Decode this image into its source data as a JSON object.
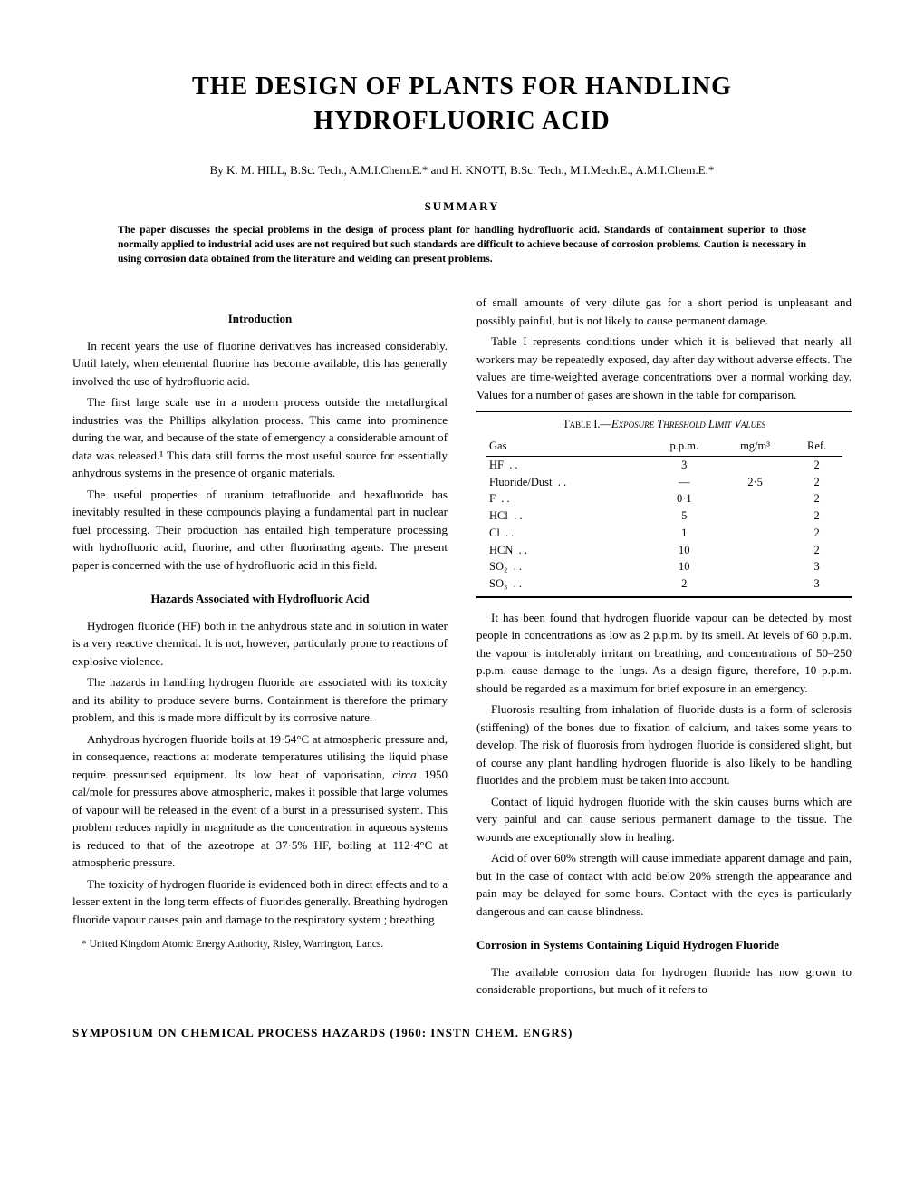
{
  "title_line1": "THE DESIGN OF PLANTS FOR HANDLING",
  "title_line2": "HYDROFLUORIC ACID",
  "byline": "By K. M. HILL, B.Sc. Tech., A.M.I.Chem.E.* and H. KNOTT, B.Sc. Tech., M.I.Mech.E., A.M.I.Chem.E.*",
  "summary_heading": "SUMMARY",
  "summary_text": "The paper discusses the special problems in the design of process plant for handling hydrofluoric acid. Standards of containment superior to those normally applied to industrial acid uses are not required but such standards are difficult to achieve because of corrosion problems. Caution is necessary in using corrosion data obtained from the literature and welding can present problems.",
  "left": {
    "intro_head": "Introduction",
    "p1": "In recent years the use of fluorine derivatives has increased considerably. Until lately, when elemental fluorine has become available, this has generally involved the use of hydrofluoric acid.",
    "p2": "The first large scale use in a modern process outside the metallurgical industries was the Phillips alkylation process. This came into prominence during the war, and because of the state of emergency a considerable amount of data was released.¹ This data still forms the most useful source for essentially anhydrous systems in the presence of organic materials.",
    "p3": "The useful properties of uranium tetrafluoride and hexafluoride has inevitably resulted in these compounds playing a fundamental part in nuclear fuel processing. Their production has entailed high temperature processing with hydrofluoric acid, fluorine, and other fluorinating agents. The present paper is concerned with the use of hydrofluoric acid in this field.",
    "hazards_head": "Hazards Associated with Hydrofluoric Acid",
    "p4": "Hydrogen fluoride (HF) both in the anhydrous state and in solution in water is a very reactive chemical. It is not, however, particularly prone to reactions of explosive violence.",
    "p5": "The hazards in handling hydrogen fluoride are associated with its toxicity and its ability to produce severe burns. Containment is therefore the primary problem, and this is made more difficult by its corrosive nature.",
    "p6a": "Anhydrous hydrogen fluoride boils at 19·54°C at atmospheric pressure and, in consequence, reactions at moderate temperatures utilising the liquid phase require pressurised equipment. Its low heat of vaporisation, ",
    "p6b": "circa",
    "p6c": " 1950 cal/mole for pressures above atmospheric, makes it possible that large volumes of vapour will be released in the event of a burst in a pressurised system. This problem reduces rapidly in magnitude as the concentration in aqueous systems is reduced to that of the azeotrope at 37·5% HF, boiling at 112·4°C at atmospheric pressure.",
    "p7": "The toxicity of hydrogen fluoride is evidenced both in direct effects and to a lesser extent in the long term effects of fluorides generally. Breathing hydrogen fluoride vapour causes pain and damage to the respiratory system ; breathing",
    "footnote": "* United Kingdom Atomic Energy Authority, Risley, Warrington, Lancs."
  },
  "right": {
    "p1": "of small amounts of very dilute gas for a short period is unpleasant and possibly painful, but is not likely to cause permanent damage.",
    "p2": "Table I represents conditions under which it is believed that nearly all workers may be repeatedly exposed, day after day without adverse effects. The values are time-weighted average concentrations over a normal working day. Values for a number of gases are shown in the table for comparison.",
    "table": {
      "title_a": "Table I.—",
      "title_b": "Exposure Threshold Limit Values",
      "cols": [
        "Gas",
        "p.p.m.",
        "mg/m³",
        "Ref."
      ],
      "rows": [
        {
          "gas": "HF",
          "ppm": "3",
          "mg": "",
          "ref": "2"
        },
        {
          "gas": "Fluoride/Dust",
          "ppm": "—",
          "mg": "2·5",
          "ref": "2"
        },
        {
          "gas": "F",
          "ppm": "0·1",
          "mg": "",
          "ref": "2"
        },
        {
          "gas": "HCl",
          "ppm": "5",
          "mg": "",
          "ref": "2"
        },
        {
          "gas": "Cl",
          "ppm": "1",
          "mg": "",
          "ref": "2"
        },
        {
          "gas": "HCN",
          "ppm": "10",
          "mg": "",
          "ref": "2"
        },
        {
          "gas": "SO₂",
          "ppm": "10",
          "mg": "",
          "ref": "3"
        },
        {
          "gas": "SO₃",
          "ppm": "2",
          "mg": "",
          "ref": "3"
        }
      ]
    },
    "p3": "It has been found that hydrogen fluoride vapour can be detected by most people in concentrations as low as 2 p.p.m. by its smell. At levels of 60 p.p.m. the vapour is intolerably irritant on breathing, and concentrations of 50–250 p.p.m. cause damage to the lungs. As a design figure, therefore, 10 p.p.m. should be regarded as a maximum for brief exposure in an emergency.",
    "p4": "Fluorosis resulting from inhalation of fluoride dusts is a form of sclerosis (stiffening) of the bones due to fixation of calcium, and takes some years to develop. The risk of fluorosis from hydrogen fluoride is considered slight, but of course any plant handling hydrogen fluoride is also likely to be handling fluorides and the problem must be taken into account.",
    "p5": "Contact of liquid hydrogen fluoride with the skin causes burns which are very painful and can cause serious permanent damage to the tissue. The wounds are exceptionally slow in healing.",
    "p6": "Acid of over 60% strength will cause immediate apparent damage and pain, but in the case of contact with acid below 20% strength the appearance and pain may be delayed for some hours. Contact with the eyes is particularly dangerous and can cause blindness.",
    "corr_head": "Corrosion in Systems Containing Liquid Hydrogen Fluoride",
    "p7": "The available corrosion data for hydrogen fluoride has now grown to considerable proportions, but much of it refers to"
  },
  "footer": "SYMPOSIUM ON CHEMICAL PROCESS HAZARDS (1960: INSTN CHEM. ENGRS)"
}
